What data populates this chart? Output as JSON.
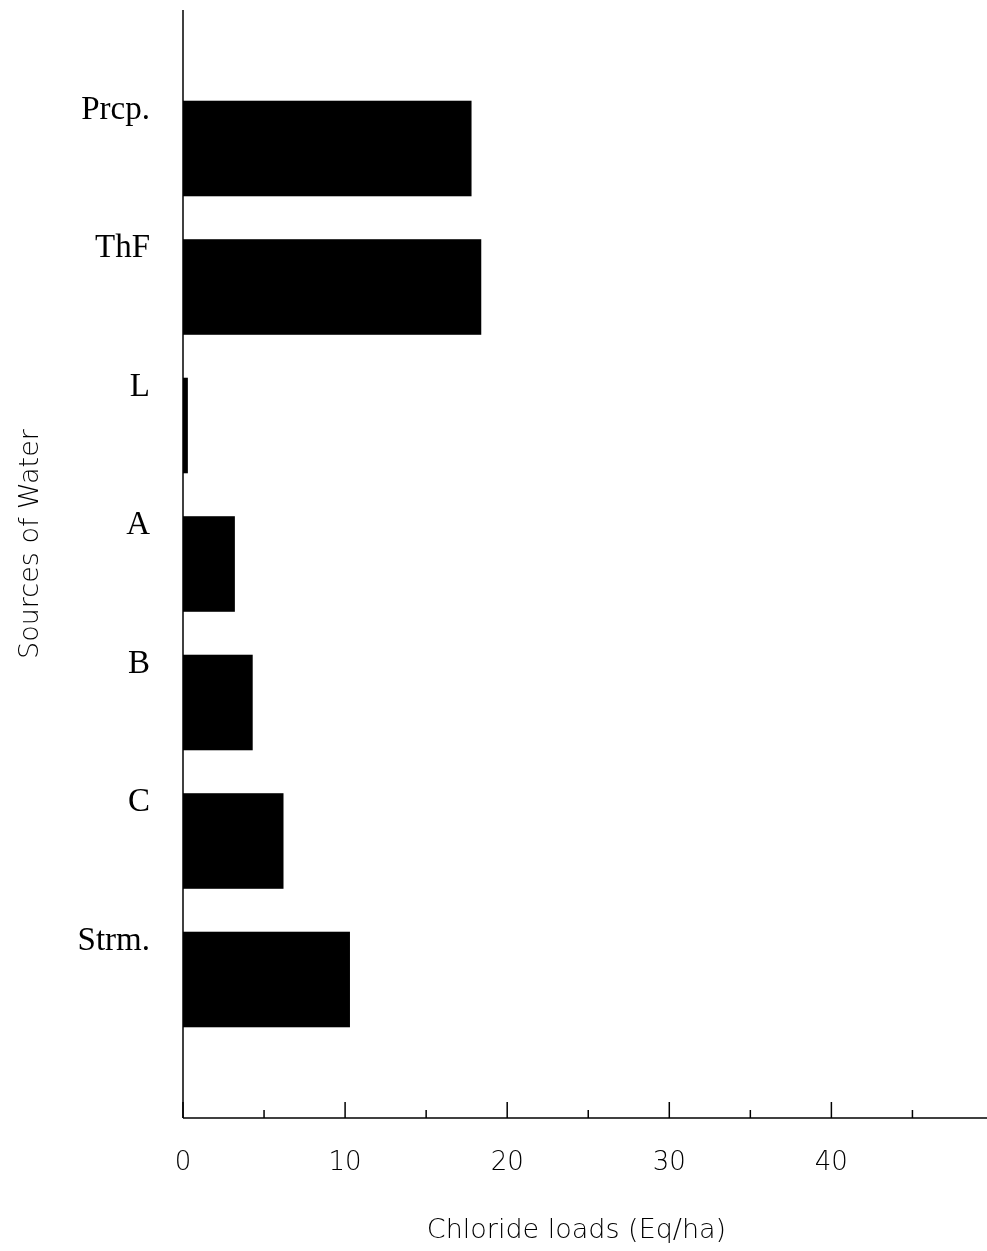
{
  "chart_data": {
    "type": "bar",
    "orientation": "horizontal",
    "xlabel": "Chloride loads (Eq/ha)",
    "ylabel": "Sources of Water",
    "categories": [
      "Prcp.",
      "ThF",
      "L",
      "A",
      "B",
      "C",
      "Strm."
    ],
    "values": [
      17.8,
      18.4,
      0.3,
      3.2,
      4.3,
      6.2,
      10.3
    ],
    "color": "#000000",
    "xlim": [
      0,
      49.6
    ],
    "xticks": [
      0,
      {
        "value": 5,
        "label": null
      },
      10,
      {
        "value": 15,
        "label": null
      },
      20,
      {
        "value": 25,
        "label": null
      },
      30,
      {
        "value": 35,
        "label": null
      },
      40,
      {
        "value": 45,
        "label": null
      }
    ],
    "grid": false
  }
}
